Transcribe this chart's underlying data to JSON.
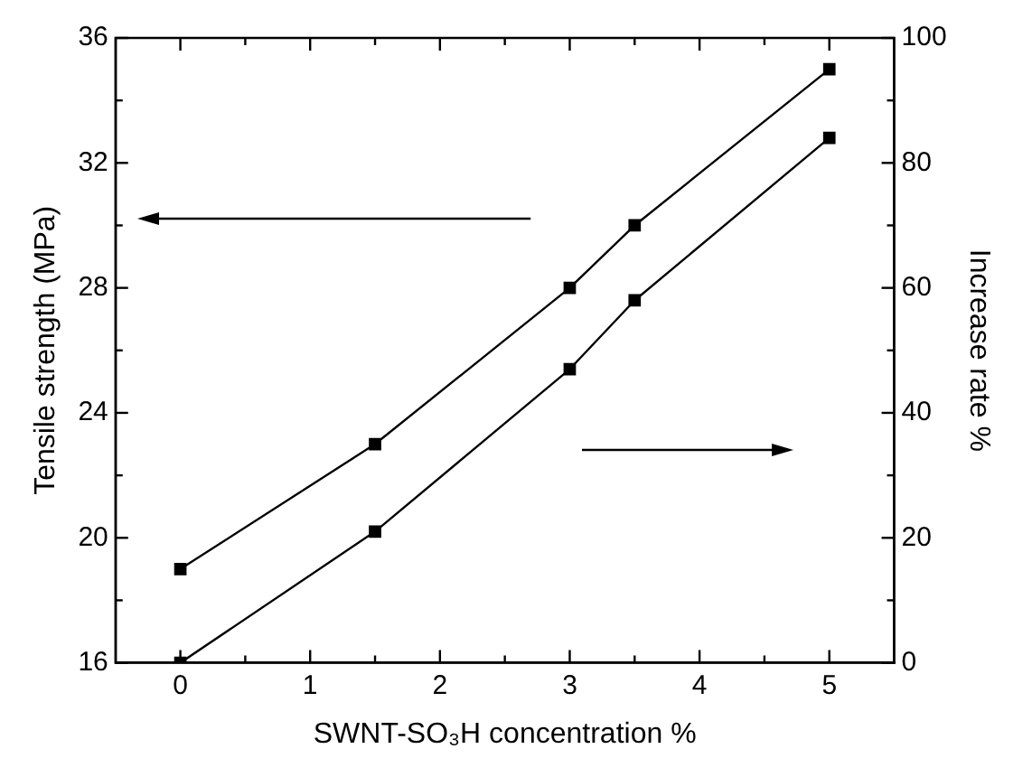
{
  "chart_data": {
    "type": "line",
    "xlabel": "SWNT-SO₃H concentration %",
    "ylabel": "Tensile strength (MPa)",
    "y2label": "Increase rate %",
    "x": [
      0,
      1.5,
      3,
      3.5,
      5
    ],
    "series": [
      {
        "color": "#000000",
        "values": [
          19,
          23,
          28,
          30,
          35
        ]
      },
      {
        "color": "#000000",
        "values": [
          0,
          21,
          47,
          58,
          84
        ],
        "axis": "y2"
      }
    ],
    "xlim": [
      -0.5,
      5.5
    ],
    "xticks": [
      0,
      {
        "value": 0.5,
        "label": null
      },
      1,
      {
        "value": 1.5,
        "label": null
      },
      2,
      {
        "value": 2.5,
        "label": null
      },
      3,
      {
        "value": 3.5,
        "label": null
      },
      4,
      {
        "value": 4.5,
        "label": null
      },
      5
    ],
    "ylim": [
      16,
      36
    ],
    "yticks": [
      16,
      {
        "value": 18,
        "label": null
      },
      20,
      {
        "value": 22,
        "label": null
      },
      24,
      {
        "value": 26,
        "label": null
      },
      28,
      {
        "value": 30,
        "label": null
      },
      32,
      {
        "value": 34,
        "label": null
      },
      36
    ],
    "y2lim": [
      0,
      100
    ],
    "y2ticks": [
      0,
      {
        "value": 10,
        "label": null
      },
      20,
      {
        "value": 30,
        "label": null
      },
      40,
      {
        "value": 50,
        "label": null
      },
      60,
      {
        "value": 70,
        "label": null
      },
      80,
      {
        "value": 90,
        "label": null
      },
      100
    ],
    "marker": "square",
    "line_style": "solid",
    "grid": false,
    "legend": false
  }
}
